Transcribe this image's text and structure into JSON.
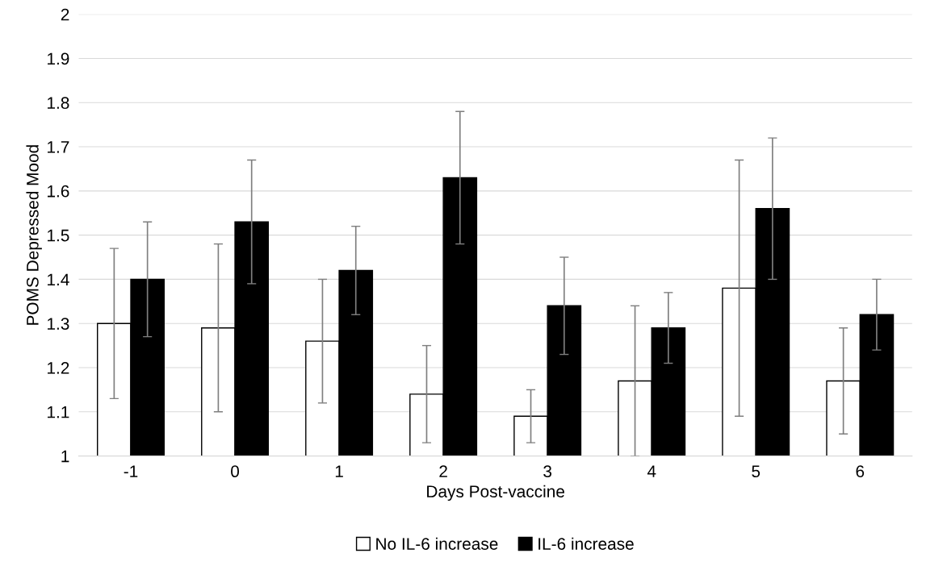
{
  "chart_data": {
    "type": "bar",
    "xlabel": "Days Post-vaccine",
    "ylabel": "POMS Depressed Mood",
    "categories": [
      "-1",
      "0",
      "1",
      "2",
      "3",
      "4",
      "5",
      "6"
    ],
    "series": [
      {
        "name": "No IL-6 increase",
        "color": "#ffffff",
        "values": [
          1.3,
          1.29,
          1.26,
          1.14,
          1.09,
          1.17,
          1.38,
          1.17
        ],
        "errors": [
          0.17,
          0.19,
          0.14,
          0.11,
          0.06,
          0.17,
          0.29,
          0.12
        ]
      },
      {
        "name": "IL-6 increase",
        "color": "#000000",
        "values": [
          1.4,
          1.53,
          1.42,
          1.63,
          1.34,
          1.29,
          1.56,
          1.32
        ],
        "errors": [
          0.13,
          0.14,
          0.1,
          0.15,
          0.11,
          0.08,
          0.16,
          0.08
        ]
      }
    ],
    "ylim": [
      1,
      2
    ],
    "yticks": [
      1,
      1.1,
      1.2,
      1.3,
      1.4,
      1.5,
      1.6,
      1.7,
      1.8,
      1.9,
      2
    ],
    "grid": "y",
    "legend": "bottom"
  }
}
